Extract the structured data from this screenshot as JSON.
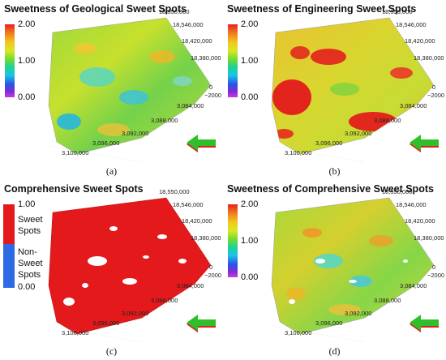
{
  "panels": {
    "a": {
      "title": "Sweetness of Geological Sweet Spots",
      "caption": "(a)",
      "scale": {
        "max": "2.00",
        "mid": "1.00",
        "min": "0.00"
      }
    },
    "b": {
      "title": "Sweetness of Engineering Sweet Spots",
      "caption": "(b)",
      "scale": {
        "max": "2.00",
        "mid": "1.00",
        "min": "0.00"
      }
    },
    "c": {
      "title": "Comprehensive Sweet Spots",
      "caption": "(c)",
      "legend": {
        "top": "1.00",
        "sweet_line1": "Sweet",
        "sweet_line2": "Spots",
        "non_line1": "Non-",
        "non_line2": "Sweet",
        "non_line3": "Spots",
        "bottom": "0.00"
      }
    },
    "d": {
      "title": "Sweetness of Comprehensive Sweet Spots",
      "caption": "(d)",
      "scale": {
        "max": "2.00",
        "mid": "1.00",
        "min": "0.00"
      }
    }
  },
  "axes": {
    "y_ticks": [
      "18,550,000",
      "18,546,000",
      "18,420,000",
      "18,380,000"
    ],
    "z_ticks": [
      "0",
      "−2000"
    ],
    "x_ticks": [
      "3,084,000",
      "3,088,000",
      "3,092,000",
      "3,096,000",
      "3,100,000"
    ]
  },
  "colors": {
    "sweet": "#e3191b",
    "non_sweet": "#2d6ae6",
    "arrow_green": "#2fbf2a",
    "arrow_red": "#d8261a"
  }
}
